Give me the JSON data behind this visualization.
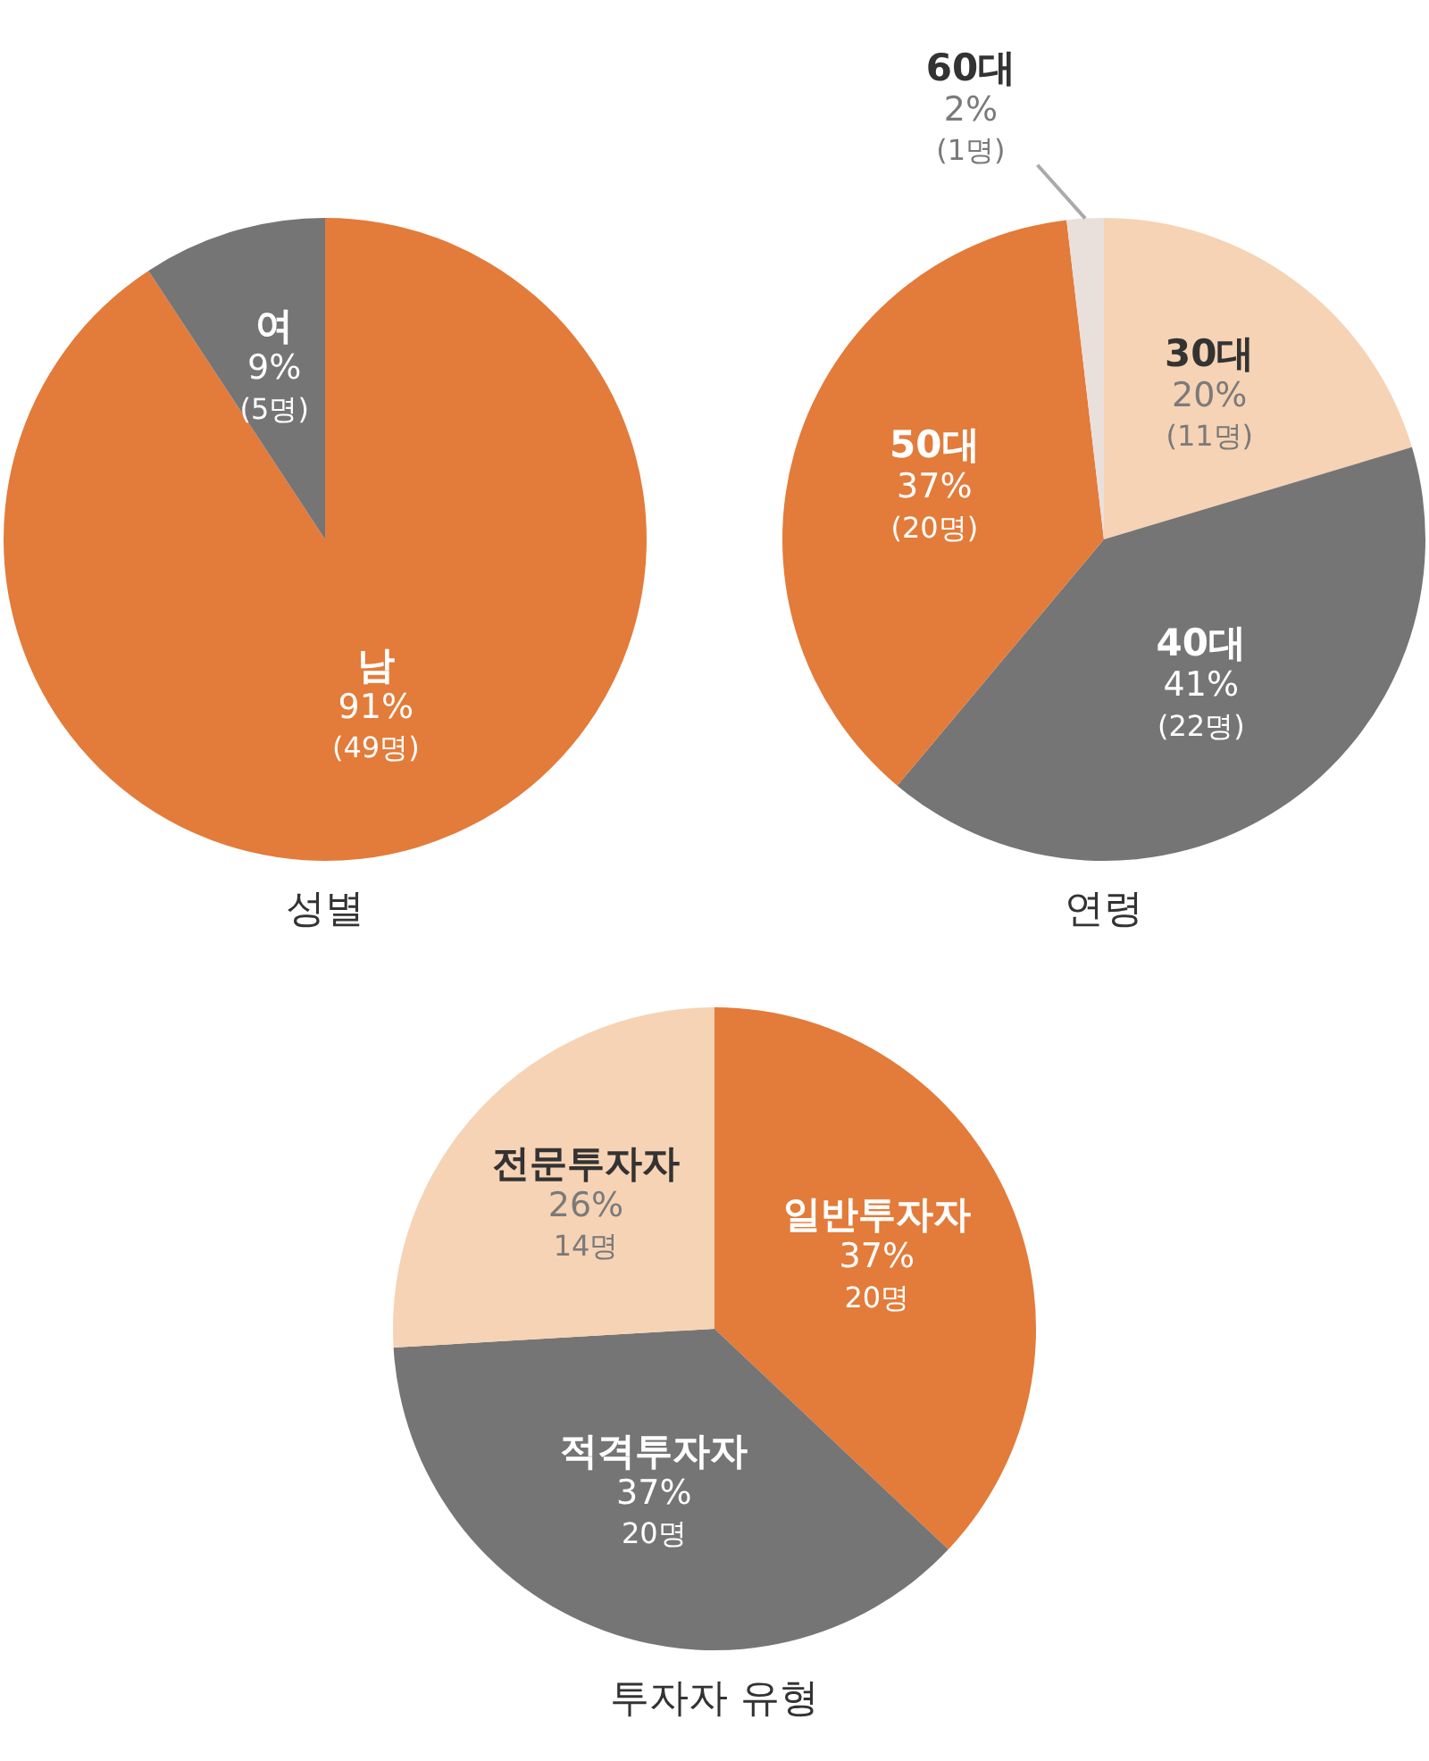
{
  "chart_data": [
    {
      "type": "pie",
      "title": "성별",
      "categories": [
        "남",
        "여"
      ],
      "values": [
        49,
        5
      ],
      "colors": [
        "#e37b3a",
        "#757575"
      ],
      "value_labels": [
        "91%\n(49명)",
        "9%\n(5명)"
      ]
    },
    {
      "type": "pie",
      "title": "연령",
      "categories": [
        "30대",
        "40대",
        "50대",
        "60대"
      ],
      "values": [
        11,
        22,
        20,
        1
      ],
      "colors": [
        "#f6d3b4",
        "#757575",
        "#e37b3a",
        "#e9e0dc"
      ],
      "value_labels": [
        "20%\n(11명)",
        "41%\n(22명)",
        "37%\n(20명)",
        "2%\n(1명)"
      ]
    },
    {
      "type": "pie",
      "title": "투자자 유형",
      "categories": [
        "일반투자자",
        "적격투자자",
        "전문투자자"
      ],
      "values": [
        20,
        20,
        14
      ],
      "colors": [
        "#e37b3a",
        "#757575",
        "#f6d3b4"
      ],
      "value_labels": [
        "37%\n20명",
        "37%\n20명",
        "26%\n14명"
      ]
    }
  ]
}
